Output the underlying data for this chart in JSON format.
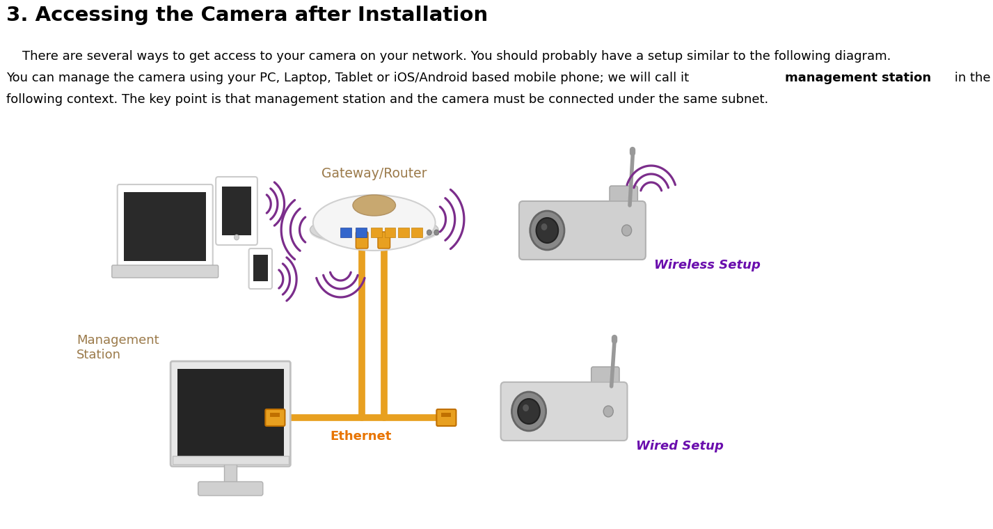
{
  "title": "3. Accessing the Camera after Installation",
  "line1": "    There are several ways to get access to your camera on your network. You should probably have a setup similar to the following diagram.",
  "line2_pre": "You can manage the camera using your PC, Laptop, Tablet or iOS/Android based mobile phone; we will call it ",
  "line2_bold": "management station",
  "line2_post": " in the",
  "line3": "following context. The key point is that management station and the camera must be connected under the same subnet.",
  "title_fontsize": 21,
  "body_fontsize": 13,
  "title_color": "#000000",
  "body_color": "#000000",
  "background_color": "#ffffff",
  "label_mgmt": "Management\nStation",
  "label_gateway": "Gateway/Router",
  "label_ethernet": "Ethernet",
  "label_wireless": "Wireless Setup",
  "label_wired": "Wired Setup",
  "label_mgmt_color": "#9b7a4a",
  "label_ethernet_color": "#e87400",
  "label_wireless_color": "#6a0dad",
  "label_wired_color": "#6a0dad",
  "label_gateway_color": "#9b7a4a",
  "orange_cable_color": "#e8a020",
  "wifi_color": "#7B2D8B"
}
